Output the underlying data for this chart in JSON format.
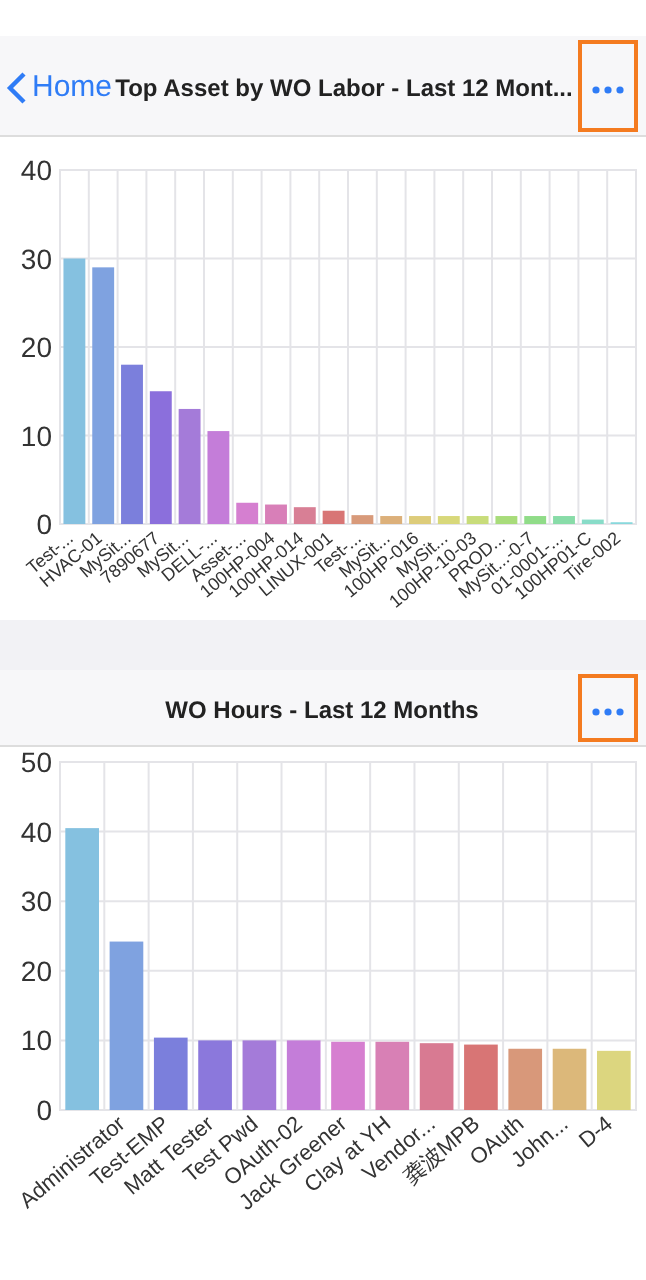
{
  "chart_data": [
    {
      "type": "bar",
      "title": "Top Asset by WO Labor - Last 12 Mont...",
      "annotations": [
        "Home"
      ],
      "categories": [
        "Test-...",
        "HVAC-01",
        "MySit...",
        "7890677",
        "MySit...",
        "DELL-...",
        "Asset-...",
        "100HP-004",
        "100HP-014",
        "LINUX-001",
        "Test-...",
        "MySit...",
        "100HP-016",
        "MySit...",
        "100HP-10-03",
        "PROD...",
        "MySit...-0-7",
        "01-0001-...",
        "100HP01-C",
        "Tire-002"
      ],
      "values": [
        30,
        29,
        18,
        15,
        13,
        10.5,
        2.4,
        2.2,
        1.9,
        1.5,
        1.0,
        0.9,
        0.9,
        0.9,
        0.9,
        0.9,
        0.9,
        0.9,
        0.5,
        0.2
      ],
      "colors": [
        "#85c1e0",
        "#7fa2e0",
        "#7b7fdc",
        "#8b6fdc",
        "#a47bd9",
        "#c47dd9",
        "#d57fd0",
        "#d87fb8",
        "#d87f95",
        "#d87575",
        "#d89a7a",
        "#dcb07a",
        "#ddcc7a",
        "#d8d87a",
        "#c8dc7a",
        "#a8dc7a",
        "#90dc88",
        "#88dca8",
        "#88dcc8",
        "#88d8dc"
      ],
      "ylim": [
        0,
        40
      ],
      "yticks": [
        0,
        10,
        20,
        30,
        40
      ],
      "grid": true
    },
    {
      "type": "bar",
      "title": "WO Hours - Last 12 Months",
      "categories": [
        null,
        "Administrator",
        "Test-EMP",
        "Matt Tester",
        "Test Pwd",
        "OAuth-02",
        "Jack Greener",
        "Clay at YH",
        "Vendor...",
        "龚波MPB",
        "OAuth",
        "John...",
        "D-4"
      ],
      "values": [
        40.5,
        24.2,
        10.4,
        10,
        10,
        10,
        9.8,
        9.8,
        9.6,
        9.4,
        8.8,
        8.8,
        8.5
      ],
      "colors": [
        "#85c1e0",
        "#7fa2e0",
        "#7b7fdc",
        "#8b78dc",
        "#a47bd9",
        "#c47dd9",
        "#d67fd0",
        "#d880b5",
        "#d87a92",
        "#d87575",
        "#d8987a",
        "#dcb87a",
        "#dcd67f"
      ],
      "ylim": [
        0,
        50
      ],
      "yticks": [
        0,
        10,
        20,
        30,
        40,
        50
      ],
      "grid": true
    }
  ]
}
